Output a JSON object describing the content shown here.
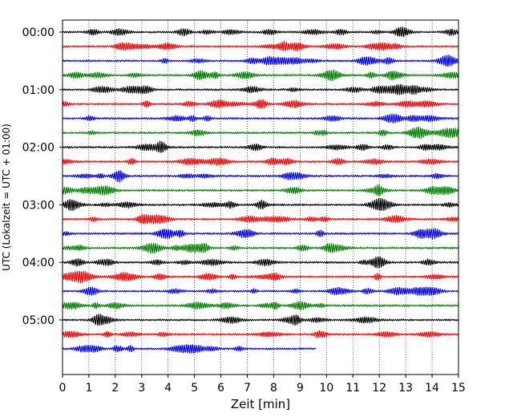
{
  "chart_data": {
    "type": "line",
    "title": "",
    "xlabel": "Zeit  [min]",
    "ylabel": "UTC (Lokalzeit = UTC + 01:00)",
    "xlim": [
      0,
      15
    ],
    "xticks": [
      "0",
      "1",
      "2",
      "3",
      "4",
      "5",
      "6",
      "7",
      "8",
      "9",
      "10",
      "11",
      "12",
      "13",
      "14",
      "15"
    ],
    "yticks": [
      "00:00",
      "01:00",
      "02:00",
      "03:00",
      "04:00",
      "05:00"
    ],
    "grid": "vertical dotted",
    "colors": [
      "#000000",
      "#ff0000",
      "#0000ff",
      "#008000"
    ],
    "row_interval_min": 15,
    "rows": [
      {
        "start": "00:00",
        "end_min": 15
      },
      {
        "start": "00:15",
        "end_min": 15
      },
      {
        "start": "00:30",
        "end_min": 15
      },
      {
        "start": "00:45",
        "end_min": 15
      },
      {
        "start": "01:00",
        "end_min": 15
      },
      {
        "start": "01:15",
        "end_min": 15
      },
      {
        "start": "01:30",
        "end_min": 15
      },
      {
        "start": "01:45",
        "end_min": 15
      },
      {
        "start": "02:00",
        "end_min": 15
      },
      {
        "start": "02:15",
        "end_min": 15
      },
      {
        "start": "02:30",
        "end_min": 15
      },
      {
        "start": "02:45",
        "end_min": 15
      },
      {
        "start": "03:00",
        "end_min": 15
      },
      {
        "start": "03:15",
        "end_min": 15
      },
      {
        "start": "03:30",
        "end_min": 15
      },
      {
        "start": "03:45",
        "end_min": 15
      },
      {
        "start": "04:00",
        "end_min": 15
      },
      {
        "start": "04:15",
        "end_min": 15
      },
      {
        "start": "04:30",
        "end_min": 15
      },
      {
        "start": "04:45",
        "end_min": 15
      },
      {
        "start": "05:00",
        "end_min": 15
      },
      {
        "start": "05:15",
        "end_min": 15
      },
      {
        "start": "05:30",
        "end_min": 9.6
      }
    ]
  }
}
